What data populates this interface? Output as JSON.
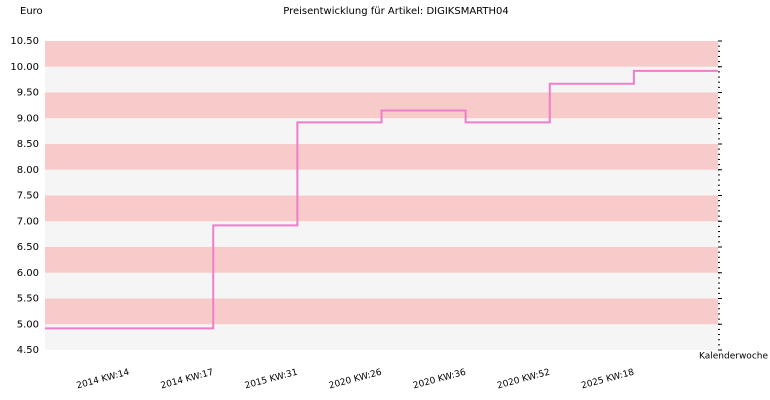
{
  "chart_data": {
    "type": "step-line",
    "title": "Preisentwicklung für Artikel: DIGIKSMARTH04",
    "y_label": "Euro",
    "x_label": "Kalenderwoche",
    "categories": [
      null,
      "2014 KW:14",
      "2014 KW:17",
      "2015 KW:31",
      "2020 KW:26",
      "2020 KW:36",
      "2020 KW:52",
      "2025 KW:18"
    ],
    "values": [
      4.92,
      4.92,
      6.92,
      8.92,
      9.15,
      8.92,
      9.67,
      9.92
    ],
    "color": "#ee7ecb",
    "ylim": [
      4.5,
      10.5
    ],
    "yticks": [
      {
        "value": 4.5,
        "label": "4.50"
      },
      {
        "value": 5,
        "label": "5.00"
      },
      {
        "value": 5.5,
        "label": "5.50"
      },
      {
        "value": 6,
        "label": "6.00"
      },
      {
        "value": 6.5,
        "label": "6.50"
      },
      {
        "value": 7,
        "label": "7.00"
      },
      {
        "value": 7.5,
        "label": "7.50"
      },
      {
        "value": 8,
        "label": "8.00"
      },
      {
        "value": 8.5,
        "label": "8.50"
      },
      {
        "value": 9,
        "label": "9.00"
      },
      {
        "value": 9.5,
        "label": "9.50"
      },
      {
        "value": 10,
        "label": "10.00"
      },
      {
        "value": 10.5,
        "label": "10.50"
      }
    ],
    "band_colors": [
      "#f5f5f5",
      "#f8cbcb"
    ]
  }
}
